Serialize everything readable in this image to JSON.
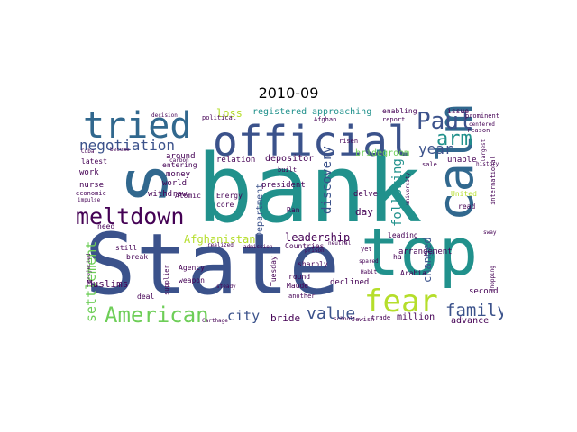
{
  "title": "2010-09",
  "palette": {
    "dark_purple": "#440154",
    "navy": "#3b528b",
    "slate": "#31688e",
    "teal": "#21918c",
    "green_teal": "#1f9e89",
    "green": "#35b779",
    "lime": "#6ece58",
    "yellow_green": "#b5de2b",
    "yellow": "#fde725"
  },
  "words": [
    {
      "text": "bank"
    },
    {
      "text": "State"
    },
    {
      "text": "top"
    },
    {
      "text": "official"
    },
    {
      "text": "tried"
    },
    {
      "text": "s"
    },
    {
      "text": "calm"
    },
    {
      "text": "fear"
    },
    {
      "text": "meltdown"
    },
    {
      "text": "American"
    },
    {
      "text": "Paul"
    },
    {
      "text": "negotiation"
    },
    {
      "text": "family"
    },
    {
      "text": "arm"
    },
    {
      "text": "value"
    },
    {
      "text": "year"
    },
    {
      "text": "city"
    },
    {
      "text": "settlement"
    },
    {
      "text": "discovery"
    },
    {
      "text": "following"
    },
    {
      "text": "changed"
    },
    {
      "text": "Afghanistan"
    },
    {
      "text": "leadership"
    },
    {
      "text": "Department"
    },
    {
      "text": "loss"
    },
    {
      "text": "registered"
    },
    {
      "text": "approaching"
    },
    {
      "text": "Muslims"
    },
    {
      "text": "bride"
    },
    {
      "text": "million"
    },
    {
      "text": "advance"
    },
    {
      "text": "day"
    },
    {
      "text": "money"
    },
    {
      "text": "world"
    },
    {
      "text": "withdraw"
    },
    {
      "text": "nurse"
    },
    {
      "text": "work"
    },
    {
      "text": "depositor"
    },
    {
      "text": "bridegroom"
    },
    {
      "text": "arrangement"
    },
    {
      "text": "second"
    },
    {
      "text": "declined"
    },
    {
      "text": "president"
    },
    {
      "text": "Countries"
    },
    {
      "text": "Ran"
    },
    {
      "text": "delve"
    },
    {
      "text": "unable"
    },
    {
      "text": "United"
    },
    {
      "text": "Arabia"
    },
    {
      "text": "leading"
    },
    {
      "text": "read"
    },
    {
      "text": "ha"
    },
    {
      "text": "round"
    },
    {
      "text": "Maude"
    },
    {
      "text": "sharply"
    },
    {
      "text": "Tuesday"
    },
    {
      "text": "weapon"
    },
    {
      "text": "Agency"
    },
    {
      "text": "supplier"
    },
    {
      "text": "break"
    },
    {
      "text": "still"
    },
    {
      "text": "need"
    },
    {
      "text": "deal"
    },
    {
      "text": "Atomic"
    },
    {
      "text": "Energy"
    },
    {
      "text": "core"
    },
    {
      "text": "relation"
    },
    {
      "text": "around"
    },
    {
      "text": "entering"
    },
    {
      "text": "latest"
    },
    {
      "text": "economic"
    },
    {
      "text": "enabling"
    },
    {
      "text": "issue"
    },
    {
      "text": "prominent"
    },
    {
      "text": "centered"
    },
    {
      "text": "reason"
    },
    {
      "text": "political"
    },
    {
      "text": "Afghan"
    },
    {
      "text": "report"
    },
    {
      "text": "risen"
    },
    {
      "text": "sale"
    },
    {
      "text": "trade"
    },
    {
      "text": "another"
    },
    {
      "text": "yet"
    },
    {
      "text": "built"
    },
    {
      "text": "decision"
    },
    {
      "text": "become"
    },
    {
      "text": "Cuba"
    },
    {
      "text": "impulse"
    },
    {
      "text": "projected"
    },
    {
      "text": "international"
    },
    {
      "text": "largest"
    },
    {
      "text": "history"
    },
    {
      "text": "university"
    },
    {
      "text": "shopping"
    },
    {
      "text": "Habit"
    },
    {
      "text": "school"
    },
    {
      "text": "Jewish"
    },
    {
      "text": "neutral"
    },
    {
      "text": "prison"
    },
    {
      "text": "Carthage"
    },
    {
      "text": "steady"
    },
    {
      "text": "realized"
    },
    {
      "text": "admission"
    },
    {
      "text": "carbon"
    },
    {
      "text": "sway"
    },
    {
      "text": "spared"
    }
  ]
}
